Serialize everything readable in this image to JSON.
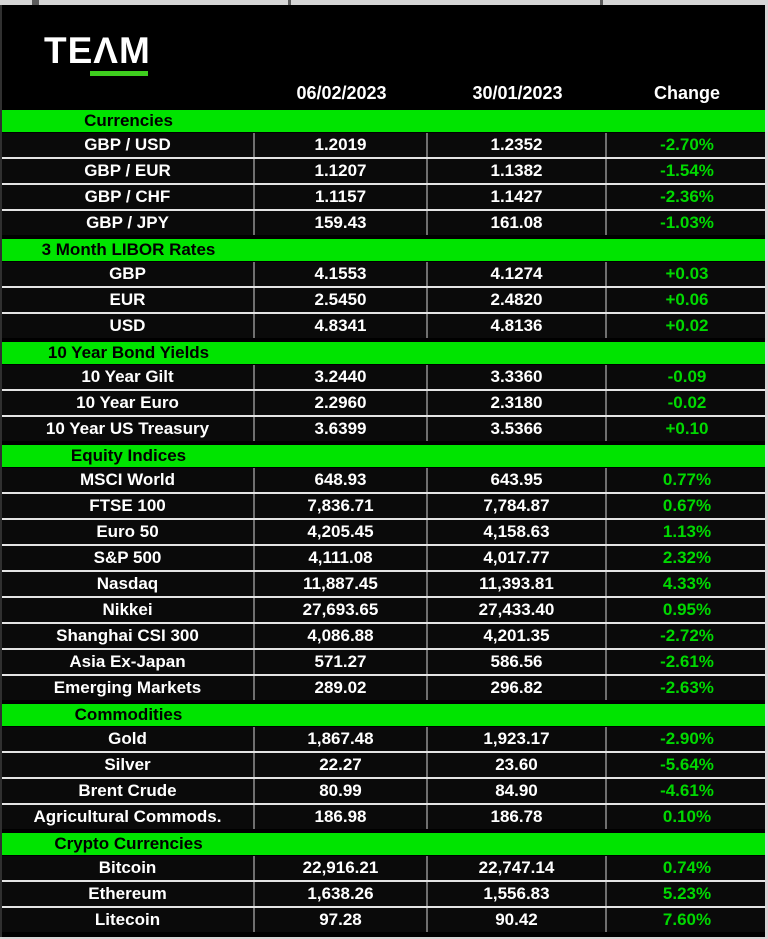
{
  "logo": {
    "text": "TEAM"
  },
  "columns": {
    "date_current": "06/02/2023",
    "date_previous": "30/01/2023",
    "change": "Change"
  },
  "colors": {
    "section_bar_green": "#00E400",
    "change_text_green": "#00D800",
    "logo_underline_green": "#3ECF1E",
    "row_background": "#0A0A0A",
    "row_text": "#FFFFFF"
  },
  "sections": [
    {
      "title": "Currencies",
      "rows": [
        {
          "label": "GBP / USD",
          "current": "1.2019",
          "previous": "1.2352",
          "change": "-2.70%"
        },
        {
          "label": "GBP / EUR",
          "current": "1.1207",
          "previous": "1.1382",
          "change": "-1.54%"
        },
        {
          "label": "GBP / CHF",
          "current": "1.1157",
          "previous": "1.1427",
          "change": "-2.36%"
        },
        {
          "label": "GBP / JPY",
          "current": "159.43",
          "previous": "161.08",
          "change": "-1.03%"
        }
      ]
    },
    {
      "title": "3 Month LIBOR Rates",
      "rows": [
        {
          "label": "GBP",
          "current": "4.1553",
          "previous": "4.1274",
          "change": "+0.03"
        },
        {
          "label": "EUR",
          "current": "2.5450",
          "previous": "2.4820",
          "change": "+0.06"
        },
        {
          "label": "USD",
          "current": "4.8341",
          "previous": "4.8136",
          "change": "+0.02"
        }
      ]
    },
    {
      "title": "10 Year Bond Yields",
      "rows": [
        {
          "label": "10 Year Gilt",
          "current": "3.2440",
          "previous": "3.3360",
          "change": "-0.09"
        },
        {
          "label": "10 Year Euro",
          "current": "2.2960",
          "previous": "2.3180",
          "change": "-0.02"
        },
        {
          "label": "10 Year US Treasury",
          "current": "3.6399",
          "previous": "3.5366",
          "change": "+0.10"
        }
      ]
    },
    {
      "title": "Equity Indices",
      "rows": [
        {
          "label": "MSCI World",
          "current": "648.93",
          "previous": "643.95",
          "change": "0.77%"
        },
        {
          "label": "FTSE 100",
          "current": "7,836.71",
          "previous": "7,784.87",
          "change": "0.67%"
        },
        {
          "label": "Euro 50",
          "current": "4,205.45",
          "previous": "4,158.63",
          "change": "1.13%"
        },
        {
          "label": "S&P 500",
          "current": "4,111.08",
          "previous": "4,017.77",
          "change": "2.32%"
        },
        {
          "label": "Nasdaq",
          "current": "11,887.45",
          "previous": "11,393.81",
          "change": "4.33%"
        },
        {
          "label": "Nikkei",
          "current": "27,693.65",
          "previous": "27,433.40",
          "change": "0.95%"
        },
        {
          "label": "Shanghai CSI 300",
          "current": "4,086.88",
          "previous": "4,201.35",
          "change": "-2.72%"
        },
        {
          "label": "Asia Ex-Japan",
          "current": "571.27",
          "previous": "586.56",
          "change": "-2.61%"
        },
        {
          "label": "Emerging Markets",
          "current": "289.02",
          "previous": "296.82",
          "change": "-2.63%"
        }
      ]
    },
    {
      "title": "Commodities",
      "rows": [
        {
          "label": "Gold",
          "current": "1,867.48",
          "previous": "1,923.17",
          "change": "-2.90%"
        },
        {
          "label": "Silver",
          "current": "22.27",
          "previous": "23.60",
          "change": "-5.64%"
        },
        {
          "label": "Brent Crude",
          "current": "80.99",
          "previous": "84.90",
          "change": "-4.61%"
        },
        {
          "label": "Agricultural Commods.",
          "current": "186.98",
          "previous": "186.78",
          "change": "0.10%"
        }
      ]
    },
    {
      "title": "Crypto Currencies",
      "rows": [
        {
          "label": "Bitcoin",
          "current": "22,916.21",
          "previous": "22,747.14",
          "change": "0.74%"
        },
        {
          "label": "Ethereum",
          "current": "1,638.26",
          "previous": "1,556.83",
          "change": "5.23%"
        },
        {
          "label": "Litecoin",
          "current": "97.28",
          "previous": "90.42",
          "change": "7.60%"
        }
      ]
    }
  ]
}
